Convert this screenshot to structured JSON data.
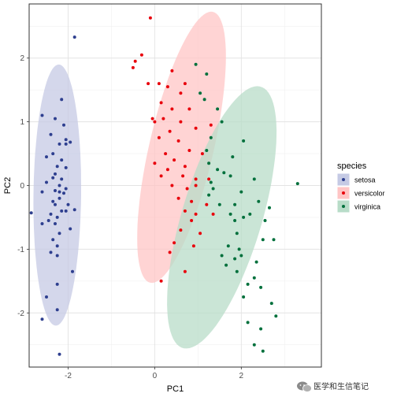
{
  "chart_data": {
    "type": "scatter",
    "title": "",
    "xlabel": "PC1",
    "ylabel": "PC2",
    "xlim": [
      -2.9,
      3.85
    ],
    "ylim": [
      -2.85,
      2.85
    ],
    "x_ticks": [
      -2,
      0,
      2
    ],
    "y_ticks": [
      -2,
      -1,
      0,
      1,
      2
    ],
    "grid": true,
    "legend": {
      "title": "species",
      "position": "right"
    },
    "series": [
      {
        "name": "setosa",
        "color": "#2E3F8F",
        "ellipse_color": "#C5CAE4",
        "ellipse": {
          "center": [
            -2.25,
            -0.15
          ],
          "semi_axes": [
            0.55,
            2.05
          ],
          "angle_deg": 1
        },
        "points": [
          [
            -1.85,
            2.33
          ],
          [
            -2.15,
            1.35
          ],
          [
            -2.3,
            1.05
          ],
          [
            -2.6,
            1.1
          ],
          [
            -2.1,
            0.95
          ],
          [
            -1.95,
            0.68
          ],
          [
            -2.4,
            0.8
          ],
          [
            -2.05,
            0.72
          ],
          [
            -2.2,
            0.65
          ],
          [
            -2.05,
            0.65
          ],
          [
            -2.35,
            0.5
          ],
          [
            -2.15,
            0.4
          ],
          [
            -2.5,
            0.45
          ],
          [
            -2.25,
            0.3
          ],
          [
            -2.05,
            0.28
          ],
          [
            -2.3,
            0.18
          ],
          [
            -2.35,
            0.12
          ],
          [
            -2.15,
            0.1
          ],
          [
            -2.5,
            0.05
          ],
          [
            -2.2,
            0.0
          ],
          [
            -2.05,
            -0.05
          ],
          [
            -2.3,
            -0.08
          ],
          [
            -2.2,
            -0.1
          ],
          [
            -2.6,
            -0.1
          ],
          [
            -2.1,
            -0.12
          ],
          [
            -2.2,
            -0.2
          ],
          [
            -2.35,
            -0.25
          ],
          [
            -2.0,
            -0.3
          ],
          [
            -2.3,
            -0.3
          ],
          [
            -2.85,
            -0.43
          ],
          [
            -2.15,
            -0.4
          ],
          [
            -2.4,
            -0.45
          ],
          [
            -1.85,
            -0.38
          ],
          [
            -2.05,
            -0.4
          ],
          [
            -2.45,
            -0.55
          ],
          [
            -2.25,
            -0.5
          ],
          [
            -2.3,
            -0.6
          ],
          [
            -2.6,
            -0.6
          ],
          [
            -1.95,
            -0.68
          ],
          [
            -2.2,
            -0.75
          ],
          [
            -2.35,
            -0.85
          ],
          [
            -2.25,
            -0.95
          ],
          [
            -2.25,
            -1.1
          ],
          [
            -2.4,
            -1.05
          ],
          [
            -1.9,
            -1.35
          ],
          [
            -2.25,
            -1.55
          ],
          [
            -2.5,
            -1.75
          ],
          [
            -2.25,
            -1.95
          ],
          [
            -2.6,
            -2.1
          ],
          [
            -2.2,
            -2.65
          ]
        ]
      },
      {
        "name": "versicolor",
        "color": "#E8000B",
        "ellipse_color": "#FFC5C5",
        "ellipse": {
          "center": [
            0.62,
            0.6
          ],
          "semi_axes": [
            0.72,
            2.25
          ],
          "angle_deg": 20
        },
        "points": [
          [
            -0.1,
            2.63
          ],
          [
            -0.3,
            2.05
          ],
          [
            -0.45,
            1.95
          ],
          [
            -0.5,
            1.85
          ],
          [
            -0.15,
            1.6
          ],
          [
            0.1,
            1.6
          ],
          [
            0.4,
            1.8
          ],
          [
            0.7,
            1.6
          ],
          [
            0.3,
            1.55
          ],
          [
            0.6,
            1.45
          ],
          [
            0.15,
            1.3
          ],
          [
            0.4,
            1.2
          ],
          [
            0.8,
            1.2
          ],
          [
            0.2,
            1.05
          ],
          [
            0.6,
            1.0
          ],
          [
            0.95,
            0.9
          ],
          [
            1.3,
            0.95
          ],
          [
            -0.05,
            1.05
          ],
          [
            0.0,
            1.0
          ],
          [
            0.35,
            0.85
          ],
          [
            0.1,
            0.75
          ],
          [
            0.55,
            0.7
          ],
          [
            0.8,
            0.55
          ],
          [
            1.1,
            0.5
          ],
          [
            0.25,
            0.5
          ],
          [
            0.45,
            0.4
          ],
          [
            0.7,
            0.3
          ],
          [
            0.0,
            0.35
          ],
          [
            0.3,
            0.25
          ],
          [
            0.15,
            0.15
          ],
          [
            0.65,
            0.15
          ],
          [
            0.95,
            0.1
          ],
          [
            0.4,
            0.0
          ],
          [
            0.75,
            -0.05
          ],
          [
            0.95,
            0.0
          ],
          [
            1.25,
            0.1
          ],
          [
            0.55,
            -0.2
          ],
          [
            0.85,
            -0.25
          ],
          [
            1.2,
            -0.3
          ],
          [
            0.7,
            -0.4
          ],
          [
            0.95,
            -0.45
          ],
          [
            1.35,
            -0.45
          ],
          [
            0.85,
            -0.55
          ],
          [
            0.6,
            -0.7
          ],
          [
            1.05,
            -0.75
          ],
          [
            0.45,
            -0.9
          ],
          [
            0.9,
            -0.95
          ],
          [
            0.35,
            -1.05
          ],
          [
            0.7,
            -1.35
          ],
          [
            0.15,
            -1.5
          ]
        ]
      },
      {
        "name": "virginica",
        "color": "#00703C",
        "ellipse_color": "#B8DCC8",
        "ellipse": {
          "center": [
            1.55,
            -0.5
          ],
          "semi_axes": [
            0.88,
            2.25
          ],
          "angle_deg": 26
        },
        "points": [
          [
            0.95,
            1.9
          ],
          [
            1.2,
            1.75
          ],
          [
            1.05,
            1.45
          ],
          [
            1.15,
            1.35
          ],
          [
            1.45,
            1.2
          ],
          [
            1.55,
            1.0
          ],
          [
            1.3,
            0.75
          ],
          [
            1.2,
            0.55
          ],
          [
            1.25,
            0.35
          ],
          [
            1.45,
            0.25
          ],
          [
            1.8,
            0.45
          ],
          [
            2.05,
            0.7
          ],
          [
            1.6,
            0.2
          ],
          [
            1.75,
            0.15
          ],
          [
            1.3,
            0.05
          ],
          [
            1.35,
            -0.05
          ],
          [
            1.25,
            -0.15
          ],
          [
            1.5,
            -0.3
          ],
          [
            2.0,
            -0.1
          ],
          [
            2.3,
            0.1
          ],
          [
            3.3,
            0.03
          ],
          [
            2.4,
            -0.25
          ],
          [
            2.65,
            -0.35
          ],
          [
            2.2,
            -0.45
          ],
          [
            1.85,
            -0.3
          ],
          [
            1.75,
            -0.45
          ],
          [
            1.85,
            -0.55
          ],
          [
            2.05,
            -0.5
          ],
          [
            1.9,
            -0.75
          ],
          [
            2.55,
            -0.55
          ],
          [
            1.7,
            -0.95
          ],
          [
            1.95,
            -1.0
          ],
          [
            2.5,
            -0.85
          ],
          [
            2.75,
            -0.85
          ],
          [
            1.85,
            -1.15
          ],
          [
            2.35,
            -1.2
          ],
          [
            2.3,
            -1.45
          ],
          [
            1.55,
            -1.1
          ],
          [
            1.65,
            -1.25
          ],
          [
            1.9,
            -1.35
          ],
          [
            2.15,
            -1.55
          ],
          [
            2.05,
            -1.75
          ],
          [
            2.45,
            -1.6
          ],
          [
            2.7,
            -1.85
          ],
          [
            2.8,
            -2.05
          ],
          [
            2.15,
            -2.15
          ],
          [
            2.45,
            -2.25
          ],
          [
            2.3,
            -2.5
          ],
          [
            2.5,
            -2.6
          ],
          [
            2.0,
            -1.1
          ]
        ]
      }
    ]
  },
  "watermark": {
    "icon": "wechat-icon",
    "text": "医学和生信笔记"
  }
}
